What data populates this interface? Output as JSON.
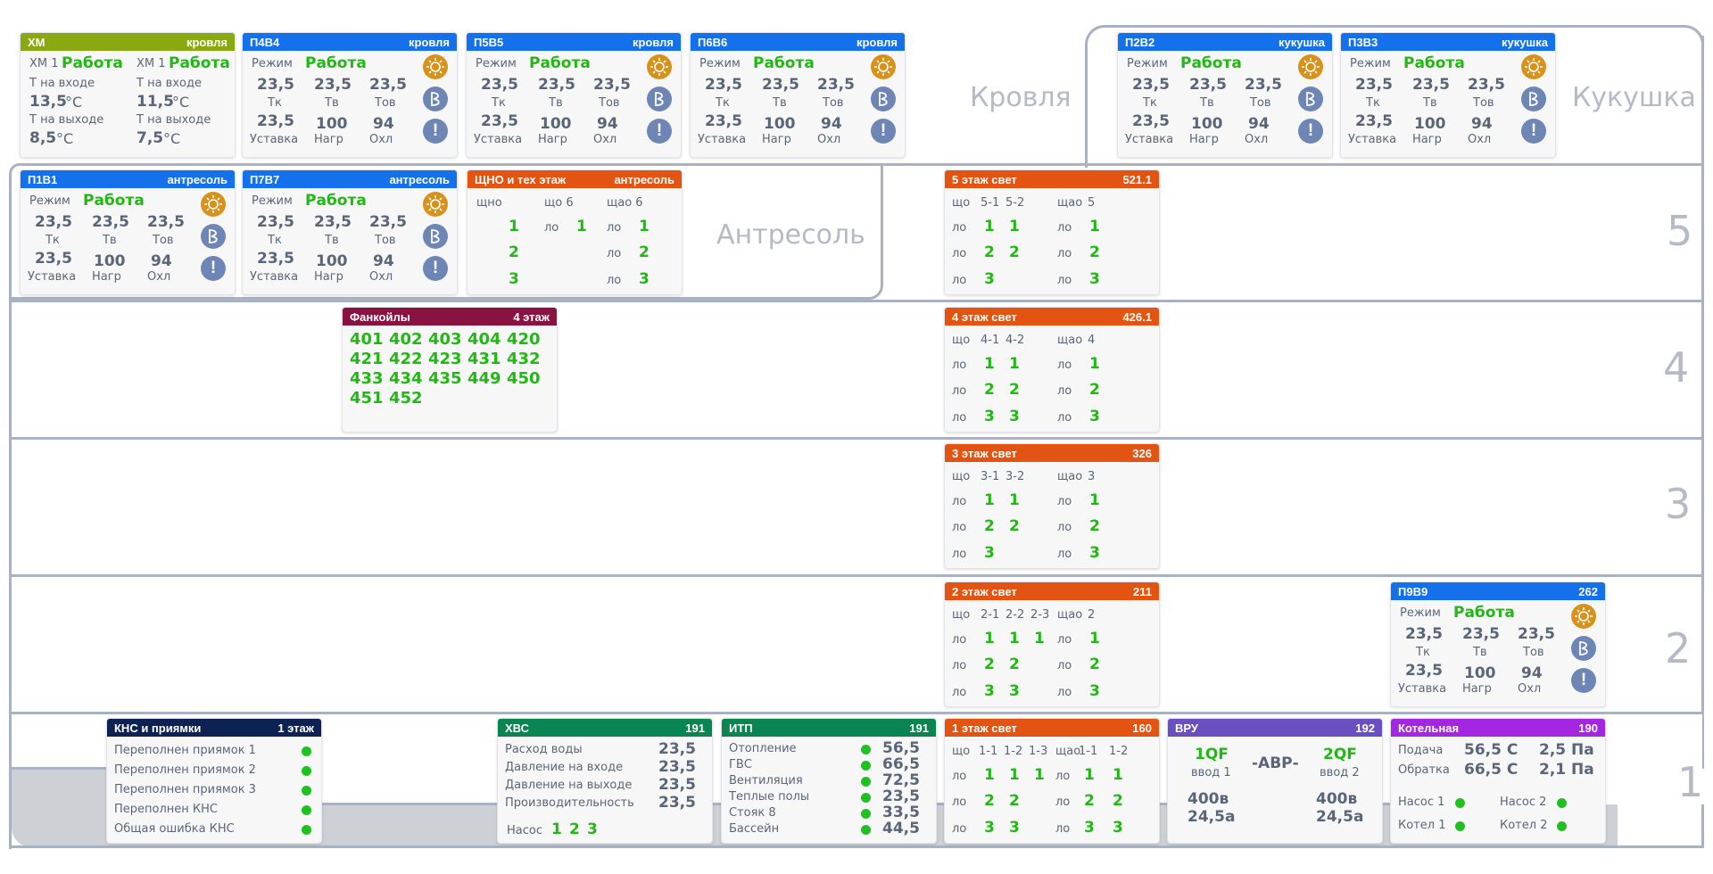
{
  "sections": {
    "krovlya": "Кровля",
    "kukushka": "Кукушка",
    "antresol": "Антресоль",
    "floor5": "5",
    "floor4": "4",
    "floor3": "3",
    "floor2": "2",
    "floor1": "1"
  },
  "colors": {
    "green_header": "#8aa810",
    "blue_header": "#1570ec",
    "orange_header": "#e35312",
    "maroon_header": "#8a1240",
    "navy_header": "#0d2152",
    "teal_header": "#0a8450",
    "violet_header": "#6a4fc0",
    "purple_header": "#a526e0",
    "frame": "#a9b2c2",
    "status_green": "#22b814"
  },
  "xm": {
    "title": "ХМ",
    "location": "кровля",
    "unit1": "ХМ 1",
    "status1": "Работа",
    "unit2": "ХМ 1",
    "status2": "Работа",
    "in_label": "Т на входе",
    "out_label": "Т на выходе",
    "in1": "13,5",
    "out1": "8,5",
    "in2": "11,5",
    "out2": "7,5",
    "unit": "°C"
  },
  "vent_labels": {
    "mode": "Режим",
    "tk": "Тк",
    "tv": "Тв",
    "tov": "Тов",
    "setpoint": "Уставка",
    "heat": "Нагр",
    "cool": "Охл"
  },
  "vent_units": [
    {
      "title": "П4В4",
      "location": "кровля",
      "status": "Работа",
      "tk": "23,5",
      "tv": "23,5",
      "tov": "23,5",
      "setpoint": "23,5",
      "heat": "100",
      "cool": "94",
      "icons": [
        "sun-icon",
        "fan-icon",
        "alert-icon"
      ],
      "alert": "!"
    },
    {
      "title": "П5В5",
      "location": "кровля",
      "status": "Работа",
      "tk": "23,5",
      "tv": "23,5",
      "tov": "23,5",
      "setpoint": "23,5",
      "heat": "100",
      "cool": "94",
      "icons": [
        "sun-icon",
        "fan-icon",
        "alert-icon"
      ],
      "alert": "!"
    },
    {
      "title": "П6В6",
      "location": "кровля",
      "status": "Работа",
      "tk": "23,5",
      "tv": "23,5",
      "tov": "23,5",
      "setpoint": "23,5",
      "heat": "100",
      "cool": "94",
      "icons": [
        "sun-icon",
        "fan-icon",
        "alert-icon"
      ],
      "alert": "!"
    },
    {
      "title": "П2В2",
      "location": "кукушка",
      "status": "Работа",
      "tk": "23,5",
      "tv": "23,5",
      "tov": "23,5",
      "setpoint": "23,5",
      "heat": "100",
      "cool": "94",
      "icons": [
        "sun-icon",
        "fan-icon",
        "alert-icon"
      ],
      "alert": "!"
    },
    {
      "title": "П3В3",
      "location": "кукушка",
      "status": "Работа",
      "tk": "23,5",
      "tv": "23,5",
      "tov": "23,5",
      "setpoint": "23,5",
      "heat": "100",
      "cool": "94",
      "icons": [
        "sun-icon",
        "fan-icon",
        "alert-icon"
      ],
      "alert": "!"
    },
    {
      "title": "П1В1",
      "location": "антресоль",
      "status": "Работа",
      "tk": "23,5",
      "tv": "23,5",
      "tov": "23,5",
      "setpoint": "23,5",
      "heat": "100",
      "cool": "94",
      "icons": [
        "sun-icon",
        "fan-icon",
        "alert-icon"
      ],
      "alert": "!"
    },
    {
      "title": "П7В7",
      "location": "антресоль",
      "status": "Работа",
      "tk": "23,5",
      "tv": "23,5",
      "tov": "23,5",
      "setpoint": "23,5",
      "heat": "100",
      "cool": "94",
      "icons": [
        "sun-icon",
        "fan-icon",
        "alert-icon"
      ],
      "alert": "!"
    },
    {
      "title": "П9В9",
      "location": "262",
      "status": "Работа",
      "tk": "23,5",
      "tv": "23,5",
      "tov": "23,5",
      "setpoint": "23,5",
      "heat": "100",
      "cool": "94",
      "icons": [
        "sun-icon",
        "fan-icon",
        "alert-icon"
      ],
      "alert": "!"
    }
  ],
  "shno": {
    "title": "ЩНО и тех этаж",
    "location": "антресоль",
    "col1": "щно",
    "col2": "що 6",
    "col3": "щао 6",
    "lo": "ло",
    "a1": "1",
    "a2": "2",
    "a3": "3",
    "b1": "1",
    "c1": "1",
    "c2": "2",
    "c3": "3"
  },
  "light": [
    {
      "title": "5 этаж свет",
      "room": "521.1",
      "h1": "що",
      "h2": "5-1",
      "h3": "5-2",
      "h4": "",
      "h5": "щао",
      "h6": "5",
      "rows": [
        [
          "1",
          "1",
          "",
          ""
        ],
        [
          "2",
          "2",
          "",
          ""
        ],
        [
          "3",
          "",
          "",
          ""
        ]
      ],
      "right": [
        "1",
        "2",
        "3"
      ]
    },
    {
      "title": "4 этаж свет",
      "room": "426.1",
      "h1": "що",
      "h2": "4-1",
      "h3": "4-2",
      "h4": "",
      "h5": "щао",
      "h6": "4",
      "rows": [
        [
          "1",
          "1",
          "",
          ""
        ],
        [
          "2",
          "2",
          "",
          ""
        ],
        [
          "3",
          "3",
          "",
          ""
        ]
      ],
      "right": [
        "1",
        "2",
        "3"
      ]
    },
    {
      "title": "3 этаж свет",
      "room": "326",
      "h1": "що",
      "h2": "3-1",
      "h3": "3-2",
      "h4": "",
      "h5": "щао",
      "h6": "3",
      "rows": [
        [
          "1",
          "1",
          "",
          ""
        ],
        [
          "2",
          "2",
          "",
          ""
        ],
        [
          "3",
          "",
          "",
          ""
        ]
      ],
      "right": [
        "1",
        "2",
        "3"
      ]
    },
    {
      "title": "2 этаж свет",
      "room": "211",
      "h1": "що",
      "h2": "2-1",
      "h3": "2-2",
      "h4": "2-3",
      "h5": "щао",
      "h6": "2",
      "rows": [
        [
          "1",
          "1",
          "1",
          ""
        ],
        [
          "2",
          "2",
          "",
          ""
        ],
        [
          "3",
          "3",
          "",
          ""
        ]
      ],
      "right": [
        "1",
        "2",
        "3"
      ]
    }
  ],
  "light1": {
    "title": "1 этаж свет",
    "room": "160",
    "h1": "що",
    "h2": "1-1",
    "h3": "1-2",
    "h4": "1-3",
    "h5": "щао",
    "h6": "1-1",
    "h7": "1-2",
    "lo": "ло",
    "r1": [
      "1",
      "1",
      "1"
    ],
    "r2": [
      "2",
      "2"
    ],
    "r3": [
      "3",
      "3"
    ],
    "s1": [
      "1",
      "1"
    ],
    "s2": [
      "2",
      "2"
    ],
    "s3": [
      "3",
      "3"
    ]
  },
  "fancoils": {
    "title": "Фанкойлы",
    "location": "4 этаж",
    "rooms": [
      "401",
      "402",
      "403",
      "404",
      "420",
      "421",
      "422",
      "423",
      "431",
      "432",
      "433",
      "434",
      "435",
      "449",
      "450",
      "451",
      "452"
    ]
  },
  "kns": {
    "title": "КНС и приямки",
    "location": "1 этаж",
    "items": [
      "Переполнен приямок 1",
      "Переполнен приямок 2",
      "Переполнен приямок 3",
      "Переполнен КНС",
      "Общая ошибка КНС"
    ]
  },
  "hvs": {
    "title": "ХВС",
    "room": "191",
    "rows": [
      {
        "label": "Расход воды",
        "value": "23,5"
      },
      {
        "label": "Давление на входе",
        "value": "23,5"
      },
      {
        "label": "Давление на выходе",
        "value": "23,5"
      },
      {
        "label": "Производительность",
        "value": "23,5"
      }
    ],
    "pump_label": "Насос",
    "pumps": [
      "1",
      "2",
      "3"
    ]
  },
  "itp": {
    "title": "ИТП",
    "room": "191",
    "rows": [
      {
        "label": "Отопление",
        "value": "56,5"
      },
      {
        "label": "ГВС",
        "value": "66,5"
      },
      {
        "label": "Вентиляция",
        "value": "72,5"
      },
      {
        "label": "Теплые полы",
        "value": "23,5"
      },
      {
        "label": "Стояк 8",
        "value": "33,5"
      },
      {
        "label": "Бассейн",
        "value": "44,5"
      }
    ]
  },
  "vru": {
    "title": "ВРУ",
    "room": "192",
    "qf1": "1QF",
    "in1": "ввод 1",
    "qf2": "2QF",
    "in2": "ввод 2",
    "avr": "-АВР-",
    "v1": "400в",
    "a1": "24,5а",
    "v2": "400в",
    "a2": "24,5а"
  },
  "boiler": {
    "title": "Котельная",
    "room": "190",
    "supply_label": "Подача",
    "supply_t": "56,5 С",
    "supply_p": "2,5 Па",
    "return_label": "Обратка",
    "return_t": "66,5 С",
    "return_p": "2,1 Па",
    "pump1": "Насос 1",
    "pump2": "Насос 2",
    "boiler1": "Котел 1",
    "boiler2": "Котел 2"
  }
}
